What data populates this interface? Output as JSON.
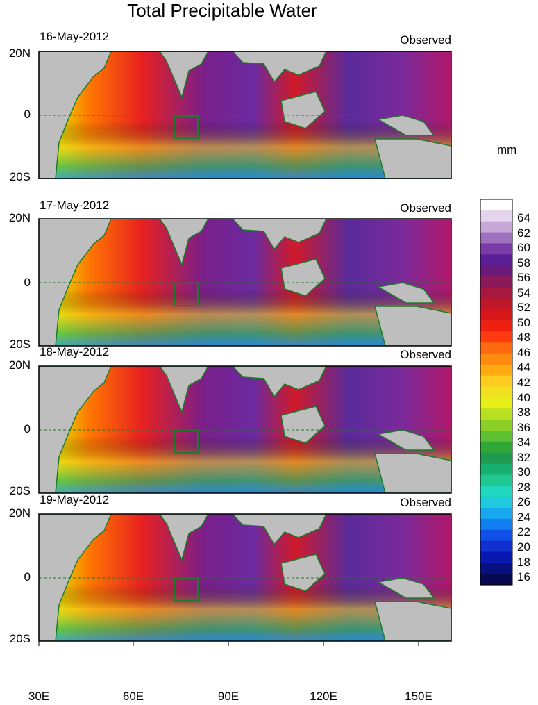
{
  "title": "Total Precipitable Water",
  "unit": "mm",
  "panels": [
    {
      "date": "16-May-2012",
      "label": "Observed"
    },
    {
      "date": "17-May-2012",
      "label": "Observed"
    },
    {
      "date": "18-May-2012",
      "label": "Observed"
    },
    {
      "date": "19-May-2012",
      "label": "Observed"
    }
  ],
  "y_ticks": [
    "20N",
    "0",
    "20S"
  ],
  "x_ticks": [
    "30E",
    "60E",
    "90E",
    "120E",
    "150E"
  ],
  "colorbar_labels": [
    "64",
    "62",
    "60",
    "58",
    "56",
    "54",
    "52",
    "50",
    "48",
    "46",
    "44",
    "42",
    "40",
    "38",
    "36",
    "34",
    "32",
    "30",
    "28",
    "26",
    "24",
    "22",
    "20",
    "18",
    "16"
  ],
  "colors": {
    "land": "#bebebe",
    "coast": "#1f7a2a"
  }
}
